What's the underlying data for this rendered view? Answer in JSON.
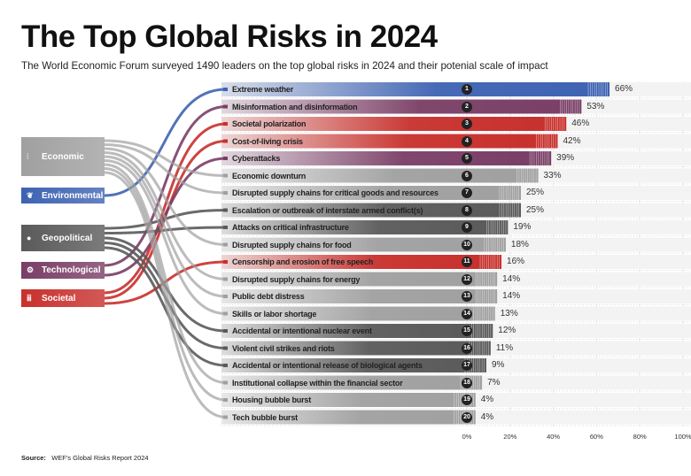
{
  "title": "The Top Global Risks in 2024",
  "subtitle": "The World Economic Forum surveyed 1490 leaders on the top global risks in 2024 and their potenial scale of impact",
  "source_label": "Source:",
  "source_text": "WEF's Global Risks Report 2024",
  "categories": [
    {
      "key": "econ",
      "label": "Economic",
      "color": "#a0a0a0",
      "icon": "chart-icon"
    },
    {
      "key": "env",
      "label": "Environmental",
      "color": "#3e63b3",
      "icon": "plant-icon"
    },
    {
      "key": "geo",
      "label": "Geopolitical",
      "color": "#5a5a5a",
      "icon": "globe-icon"
    },
    {
      "key": "tech",
      "label": "Technological",
      "color": "#7a3e66",
      "icon": "robot-arm-icon"
    },
    {
      "key": "soc",
      "label": "Societal",
      "color": "#c8302c",
      "icon": "people-icon"
    }
  ],
  "chart_data": {
    "type": "bar",
    "orientation": "horizontal",
    "xlim": [
      0,
      100
    ],
    "x_ticks": [
      "0%",
      "20%",
      "40%",
      "60%",
      "80%",
      "100%"
    ],
    "categories": [
      "Extreme weather",
      "Misinformation and disinformation",
      "Societal polarization",
      "Cost-of-living crisis",
      "Cyberattacks",
      "Economic downturn",
      "Disrupted supply chains for critical goods and resources",
      "Escalation or outbreak of interstate armed conflict(s)",
      "Attacks on critical infrastructure",
      "Disrupted supply chains for food",
      "Censorship and erosion of free speech",
      "Disrupted supply chains for energy",
      "Public debt distress",
      "Skills or labor shortage",
      "Accidental or intentional nuclear event",
      "Violent civil strikes and riots",
      "Accidental or intentional release of biological agents",
      "Institutional collapse within the financial sector",
      "Housing bubble burst",
      "Tech bubble burst"
    ],
    "values": [
      66,
      53,
      46,
      42,
      39,
      33,
      25,
      25,
      19,
      18,
      16,
      14,
      14,
      13,
      12,
      11,
      9,
      7,
      4,
      4
    ],
    "value_labels": [
      "66%",
      "53%",
      "46%",
      "42%",
      "39%",
      "33%",
      "25%",
      "25%",
      "19%",
      "18%",
      "16%",
      "14%",
      "14%",
      "13%",
      "12%",
      "11%",
      "9%",
      "7%",
      "4%",
      "4%"
    ],
    "ranks": [
      "1",
      "2",
      "3",
      "4",
      "5",
      "6",
      "7",
      "8",
      "9",
      "10",
      "11",
      "12",
      "13",
      "14",
      "15",
      "16",
      "17",
      "18",
      "19",
      "20"
    ],
    "risk_category": [
      "env",
      "tech",
      "soc",
      "soc",
      "tech",
      "econ",
      "econ",
      "geo",
      "geo",
      "econ",
      "soc",
      "econ",
      "econ",
      "econ",
      "geo",
      "geo",
      "geo",
      "econ",
      "econ",
      "econ"
    ]
  }
}
